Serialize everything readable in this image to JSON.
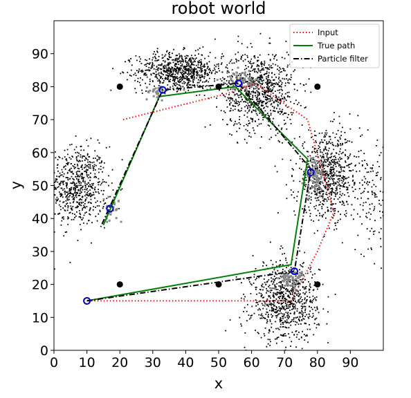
{
  "chart_data": {
    "type": "scatter",
    "title": "robot world",
    "xlabel": "x",
    "ylabel": "y",
    "xlim": [
      0,
      100
    ],
    "ylim": [
      0,
      100
    ],
    "xticks": [
      0,
      10,
      20,
      30,
      40,
      50,
      60,
      70,
      80,
      90
    ],
    "yticks": [
      0,
      10,
      20,
      30,
      40,
      50,
      60,
      70,
      80,
      90
    ],
    "grid": false,
    "legend_position": "top-right",
    "landmarks": [
      {
        "x": 20,
        "y": 80
      },
      {
        "x": 50,
        "y": 80
      },
      {
        "x": 80,
        "y": 80
      },
      {
        "x": 20,
        "y": 20
      },
      {
        "x": 50,
        "y": 20
      },
      {
        "x": 80,
        "y": 20
      }
    ],
    "series": [
      {
        "name": "Input",
        "style": "dotted",
        "color": "#ff0000",
        "x": [
          21,
          53,
          61,
          77,
          85,
          80,
          72,
          55,
          10
        ],
        "y": [
          70,
          78,
          81,
          70,
          42,
          30,
          15,
          15,
          15
        ]
      },
      {
        "name": "True path",
        "style": "solid",
        "color": "#008000",
        "x": [
          10,
          72,
          77,
          58,
          55,
          32,
          15
        ],
        "y": [
          15,
          26,
          58,
          77,
          80,
          77,
          38
        ]
      },
      {
        "name": "Particle filter",
        "style": "dashdot",
        "color": "#000000",
        "x": [
          10,
          73,
          78,
          56,
          33,
          14
        ],
        "y": [
          15,
          24,
          55,
          81,
          79,
          37
        ]
      }
    ],
    "estimates": [
      {
        "x": 17,
        "y": 43
      },
      {
        "x": 33,
        "y": 79
      },
      {
        "x": 56,
        "y": 81
      },
      {
        "x": 78,
        "y": 54
      },
      {
        "x": 73,
        "y": 24
      },
      {
        "x": 10,
        "y": 15
      }
    ],
    "particle_clusters": [
      {
        "cx": 7,
        "cy": 50,
        "sx": 4.5,
        "sy": 6,
        "n": 650
      },
      {
        "cx": 38,
        "cy": 85,
        "sx": 6.5,
        "sy": 2.8,
        "n": 750
      },
      {
        "cx": 62,
        "cy": 79,
        "sx": 5.5,
        "sy": 6,
        "n": 850
      },
      {
        "cx": 83,
        "cy": 53,
        "sx": 5,
        "sy": 6.5,
        "n": 750
      },
      {
        "cx": 70,
        "cy": 15,
        "sx": 5,
        "sy": 6,
        "n": 800
      },
      {
        "cx": 97,
        "cy": 45,
        "sx": 3,
        "sy": 8,
        "n": 120
      }
    ],
    "gray_particle_clusters": [
      {
        "cx": 17,
        "cy": 42,
        "sx": 1.2,
        "sy": 2,
        "n": 25
      },
      {
        "cx": 31,
        "cy": 79,
        "sx": 2.5,
        "sy": 1,
        "n": 30
      },
      {
        "cx": 57,
        "cy": 82,
        "sx": 2.5,
        "sy": 1.5,
        "n": 60
      },
      {
        "cx": 79,
        "cy": 53,
        "sx": 1.5,
        "sy": 3,
        "n": 70
      },
      {
        "cx": 72,
        "cy": 22,
        "sx": 2,
        "sy": 1.5,
        "n": 60
      }
    ]
  }
}
